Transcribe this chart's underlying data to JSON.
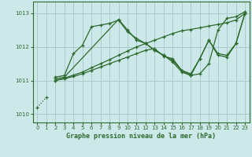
{
  "background_color": "#cce8e8",
  "grid_color": "#aacccc",
  "line_color": "#2d6a2d",
  "title": "Graphe pression niveau de la mer (hPa)",
  "xlim": [
    -0.5,
    23.5
  ],
  "ylim": [
    1009.75,
    1013.35
  ],
  "yticks": [
    1010,
    1011,
    1012,
    1013
  ],
  "xticks": [
    0,
    1,
    2,
    3,
    4,
    5,
    6,
    7,
    8,
    9,
    10,
    11,
    12,
    13,
    14,
    15,
    16,
    17,
    18,
    19,
    20,
    21,
    22,
    23
  ],
  "series": [
    {
      "x": [
        0,
        1
      ],
      "y": [
        1010.2,
        1010.5
      ],
      "linestyle": "dotted",
      "marker": "+"
    },
    {
      "x": [
        2,
        3,
        4,
        5,
        6,
        7,
        8,
        9,
        10,
        11,
        12,
        13,
        14,
        15,
        16,
        17,
        18,
        19,
        20,
        21,
        22,
        23
      ],
      "y": [
        1011.1,
        1011.15,
        1011.8,
        1012.05,
        1012.6,
        1012.65,
        1012.7,
        1012.8,
        1012.45,
        1012.25,
        1012.1,
        1011.9,
        1011.75,
        1011.6,
        1011.3,
        1011.15,
        1011.2,
        1011.5,
        1012.5,
        1012.85,
        1012.9,
        1013.05
      ],
      "linestyle": "solid",
      "marker": "+"
    },
    {
      "x": [
        2,
        3,
        9,
        10,
        11,
        12,
        13,
        14,
        15,
        16,
        17,
        18,
        19,
        20,
        21,
        22,
        23
      ],
      "y": [
        1011.05,
        1011.1,
        1012.82,
        1012.5,
        1012.2,
        1012.1,
        1011.9,
        1011.75,
        1011.55,
        1011.25,
        1011.15,
        1011.65,
        1012.2,
        1011.8,
        1011.75,
        1012.1,
        1013.0
      ],
      "linestyle": "solid",
      "marker": "+"
    },
    {
      "x": [
        2,
        3,
        4,
        5,
        6,
        7,
        8,
        9,
        10,
        11,
        12,
        13,
        14,
        15,
        16,
        17,
        18,
        19,
        20,
        21,
        22,
        23
      ],
      "y": [
        1011.0,
        1011.07,
        1011.16,
        1011.25,
        1011.38,
        1011.5,
        1011.62,
        1011.75,
        1011.88,
        1012.0,
        1012.1,
        1012.2,
        1012.3,
        1012.4,
        1012.48,
        1012.52,
        1012.57,
        1012.62,
        1012.67,
        1012.72,
        1012.8,
        1013.0
      ],
      "linestyle": "solid",
      "marker": "+"
    },
    {
      "x": [
        2,
        3,
        4,
        5,
        6,
        7,
        8,
        9,
        10,
        11,
        12,
        13,
        14,
        15,
        16,
        17,
        18,
        19,
        20,
        21,
        22,
        23
      ],
      "y": [
        1011.0,
        1011.05,
        1011.12,
        1011.2,
        1011.3,
        1011.4,
        1011.5,
        1011.6,
        1011.7,
        1011.8,
        1011.9,
        1011.95,
        1011.72,
        1011.65,
        1011.3,
        1011.2,
        1011.65,
        1012.2,
        1011.75,
        1011.7,
        1012.1,
        1013.0
      ],
      "linestyle": "solid",
      "marker": "+"
    }
  ]
}
